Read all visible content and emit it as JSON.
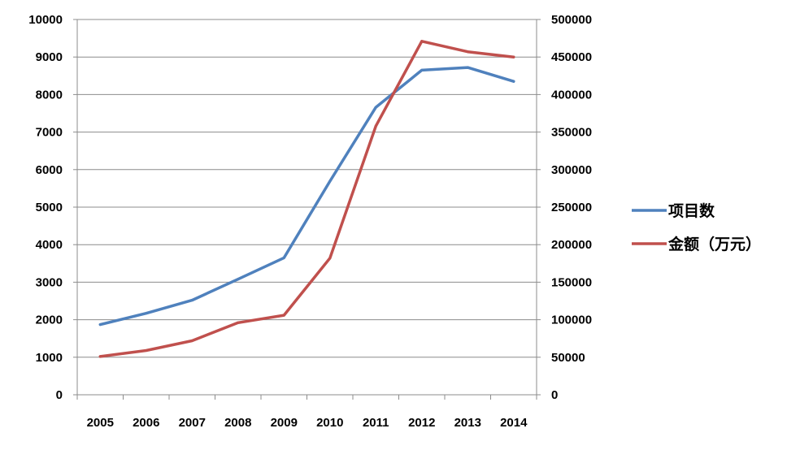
{
  "chart_data": {
    "type": "line",
    "categories": [
      "2005",
      "2006",
      "2007",
      "2008",
      "2009",
      "2010",
      "2011",
      "2012",
      "2013",
      "2014"
    ],
    "series": [
      {
        "name": "项目数",
        "axis": "left",
        "color": "#4f81bd",
        "values": [
          1870,
          2170,
          2520,
          3080,
          3650,
          5690,
          7660,
          8650,
          8720,
          8350
        ]
      },
      {
        "name": "金额（万元）",
        "axis": "right",
        "color": "#c0504d",
        "values": [
          51000,
          59000,
          72000,
          96000,
          106000,
          182000,
          358000,
          471000,
          457000,
          450000
        ]
      }
    ],
    "ylim_left": [
      0,
      10000
    ],
    "ylim_right": [
      0,
      500000
    ],
    "yticks_left": [
      "0",
      "1000",
      "2000",
      "3000",
      "4000",
      "5000",
      "6000",
      "7000",
      "8000",
      "9000",
      "10000"
    ],
    "yticks_right": [
      "0",
      "50000",
      "100000",
      "150000",
      "200000",
      "250000",
      "300000",
      "350000",
      "400000",
      "450000",
      "500000"
    ],
    "grid": true,
    "legend_position": "right"
  }
}
